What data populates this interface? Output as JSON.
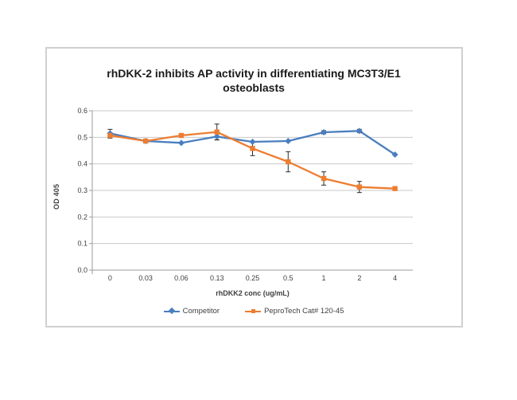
{
  "chart_data": {
    "type": "line",
    "title": "rhDKK-2 inhibits AP activity in differentiating MC3T3/E1 osteoblasts",
    "xlabel": "rhDKK2 conc (ug/mL)",
    "ylabel": "OD 405",
    "categories": [
      "0",
      "0.03",
      "0.06",
      "0.13",
      "0.25",
      "0.5",
      "1",
      "2",
      "4"
    ],
    "yticks": [
      "0.0",
      "0.1",
      "0.2",
      "0.3",
      "0.4",
      "0.5",
      "0.6"
    ],
    "ylim": [
      0,
      0.6
    ],
    "grid": "horizontal gridlines only",
    "legend_position": "bottom",
    "error_bar_color": "#2b2b2b",
    "gridline_color": "#c9c9c9",
    "axis_color": "#9b9b9b",
    "tick_label_color": "#3f3f3f",
    "series": [
      {
        "name": "Competitor",
        "color": "#4a7ebf",
        "marker": "diamond",
        "values": [
          0.515,
          0.486,
          0.479,
          0.503,
          0.483,
          0.486,
          0.519,
          0.524,
          0.435
        ],
        "errors": [
          0.015,
          0,
          0,
          0.012,
          0,
          0,
          0.006,
          0.006,
          0
        ]
      },
      {
        "name": "PeproTech Cat# 120-45",
        "color": "#ed7d31",
        "marker": "square",
        "values": [
          0.507,
          0.486,
          0.507,
          0.52,
          0.458,
          0.408,
          0.345,
          0.313,
          0.307
        ],
        "errors": [
          0.01,
          0,
          0,
          0.03,
          0.027,
          0.038,
          0.025,
          0.021,
          0
        ]
      }
    ]
  }
}
